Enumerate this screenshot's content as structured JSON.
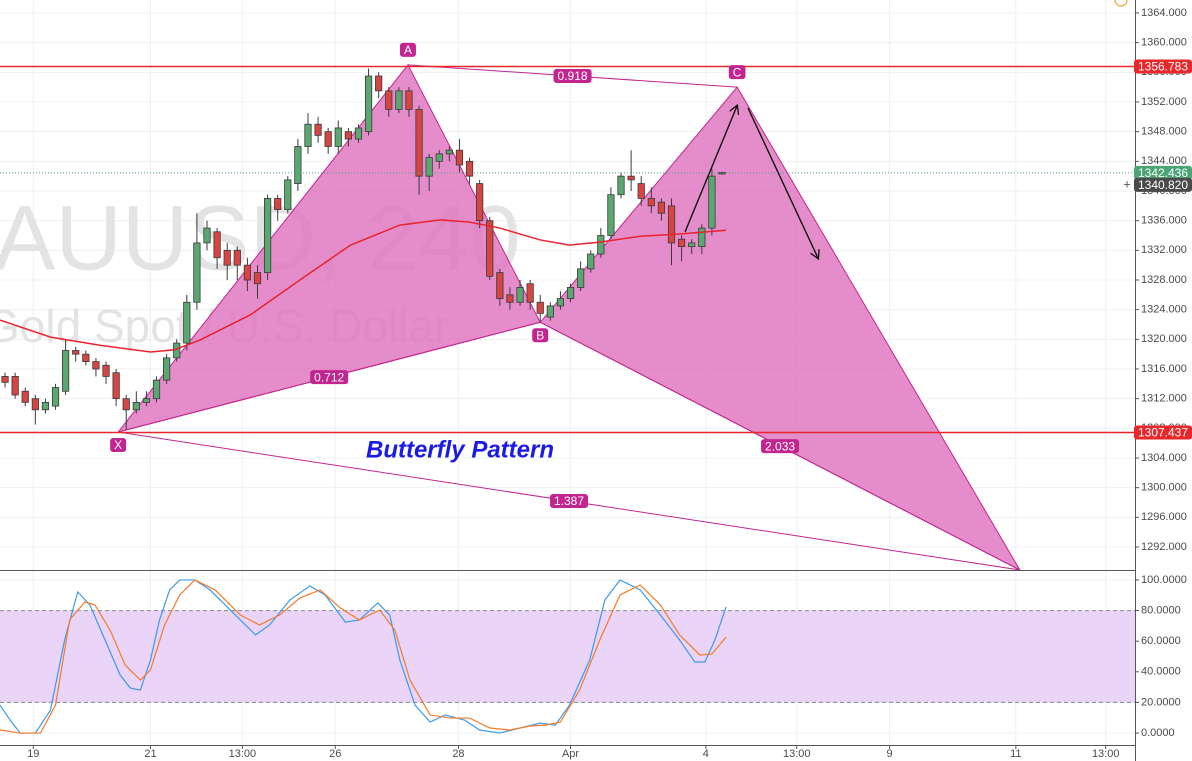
{
  "chart_data": {
    "type": "candlestick",
    "title": "AUUSD, 240",
    "subtitle": "Gold Spot / U.S. Dollar",
    "annotation": "Butterfly Pattern",
    "x": [
      0,
      1,
      2,
      3,
      4,
      5,
      6,
      7,
      8,
      9,
      10,
      11,
      12,
      13,
      14,
      15,
      16,
      17,
      18,
      19,
      20,
      21,
      22,
      23,
      24,
      25,
      26,
      27,
      28,
      29,
      30,
      31,
      32,
      33,
      34,
      35,
      36,
      37,
      38,
      39,
      40,
      41,
      42,
      43,
      44,
      45,
      46,
      47,
      48,
      49,
      50,
      51,
      52,
      53,
      54,
      55,
      56,
      57,
      58,
      59,
      60,
      61,
      62,
      63,
      64,
      65,
      66,
      67,
      68,
      69,
      70,
      71
    ],
    "open": [
      1315,
      1315,
      1313,
      1312,
      1310.5,
      1311,
      1313,
      1318.5,
      1318,
      1317,
      1316.5,
      1315.5,
      1312,
      1310.5,
      1311.5,
      1312,
      1314.5,
      1317.5,
      1319.5,
      1325,
      1333,
      1334.5,
      1332,
      1332,
      1330,
      1329,
      1329,
      1339,
      1337.5,
      1341,
      1346,
      1349,
      1348,
      1346,
      1348,
      1347,
      1348,
      1355.5,
      1353.5,
      1351,
      1353.5,
      1351,
      1342,
      1344,
      1345,
      1345.5,
      1344,
      1341,
      1336,
      1329,
      1326,
      1325,
      1327.5,
      1325,
      1323,
      1324.5,
      1325.5,
      1327,
      1329.5,
      1331.5,
      1334,
      1339.5,
      1342,
      1341,
      1339,
      1338.5,
      1338,
      1333.5,
      1332.5,
      1332.5,
      1335,
      1342.3
    ],
    "high": [
      1315.5,
      1315.5,
      1313.5,
      1312.5,
      1312,
      1314,
      1320,
      1319,
      1318.5,
      1317.5,
      1317,
      1316,
      1312.5,
      1313,
      1313,
      1315,
      1318,
      1320,
      1326,
      1337,
      1336,
      1335,
      1333,
      1332.5,
      1331,
      1330,
      1339.5,
      1339.5,
      1342,
      1347,
      1350.5,
      1350,
      1348.5,
      1349.5,
      1348.5,
      1349,
      1356.5,
      1356,
      1354,
      1354,
      1354,
      1351.5,
      1345,
      1345.5,
      1346,
      1347,
      1344.5,
      1341.5,
      1336.5,
      1329.5,
      1327,
      1328,
      1328,
      1326,
      1325,
      1326.5,
      1327.5,
      1330.5,
      1332,
      1335,
      1340.5,
      1342.5,
      1345.5,
      1342,
      1340.5,
      1339,
      1339,
      1334,
      1333.5,
      1335.5,
      1343,
      1342.6
    ],
    "low": [
      1313.5,
      1312,
      1311,
      1308.5,
      1310,
      1310.5,
      1312.5,
      1317,
      1316.5,
      1315,
      1314,
      1311,
      1307.8,
      1310,
      1311,
      1311.5,
      1314,
      1317,
      1318.5,
      1324,
      1332,
      1329.5,
      1328,
      1328,
      1326.5,
      1325.5,
      1328,
      1336,
      1337,
      1340,
      1345,
      1346.5,
      1345,
      1345,
      1346,
      1346.5,
      1347.5,
      1352.5,
      1350,
      1350.5,
      1350,
      1339.5,
      1340,
      1343,
      1344,
      1342.5,
      1341,
      1335,
      1328,
      1324.5,
      1324,
      1324.5,
      1324,
      1322.3,
      1322.5,
      1324,
      1325,
      1326.5,
      1329,
      1331,
      1333.5,
      1339,
      1340,
      1338,
      1337,
      1336,
      1330,
      1330.5,
      1331.5,
      1331.5,
      1334,
      1342.2
    ],
    "close": [
      1314.2,
      1312.5,
      1311.5,
      1310.5,
      1311.5,
      1313.5,
      1318.5,
      1318,
      1317,
      1316,
      1315,
      1312,
      1310.5,
      1311.5,
      1312,
      1314.5,
      1317.5,
      1319.5,
      1325,
      1333,
      1335,
      1331,
      1330,
      1330,
      1328,
      1327.5,
      1339,
      1337.5,
      1341.5,
      1346,
      1349,
      1347.5,
      1346,
      1348.5,
      1347,
      1348.5,
      1355.5,
      1353.5,
      1351,
      1353.5,
      1351,
      1342,
      1344.5,
      1345,
      1345.5,
      1343.5,
      1342,
      1336,
      1328.5,
      1325.5,
      1325,
      1327,
      1325,
      1323.5,
      1324.5,
      1325.5,
      1327,
      1329.5,
      1331.5,
      1334,
      1339.5,
      1342,
      1341.5,
      1339,
      1338,
      1337,
      1333,
      1332.5,
      1333,
      1335,
      1342,
      1342.5
    ],
    "up_color": "#5aa86f",
    "down_color": "#d64541",
    "xlim": [
      -0.5,
      111.9
    ],
    "xticks": [
      {
        "value": 2.8,
        "label": "19"
      },
      {
        "value": 14.4,
        "label": "21"
      },
      {
        "value": 23.5,
        "label": "13:00"
      },
      {
        "value": 32.7,
        "label": "26"
      },
      {
        "value": 44.9,
        "label": "28"
      },
      {
        "value": 56.0,
        "label": "Apr"
      },
      {
        "value": 69.4,
        "label": "4"
      },
      {
        "value": 78.4,
        "label": "13:00"
      },
      {
        "value": 87.6,
        "label": "9"
      },
      {
        "value": 100.1,
        "label": "11"
      },
      {
        "value": 109.0,
        "label": "13:00"
      }
    ],
    "ylim": [
      1288.9,
      1365.75
    ],
    "yticks": [
      {
        "value": 1364,
        "label": "1364.000"
      },
      {
        "value": 1360,
        "label": "1360.000"
      },
      {
        "value": 1356,
        "label": "1356.000"
      },
      {
        "value": 1352,
        "label": "1352.000"
      },
      {
        "value": 1348,
        "label": "1348.000"
      },
      {
        "value": 1344,
        "label": "1344.000"
      },
      {
        "value": 1340,
        "label": "1340.000"
      },
      {
        "value": 1336,
        "label": "1336.000"
      },
      {
        "value": 1332,
        "label": "1332.000"
      },
      {
        "value": 1328,
        "label": "1328.000"
      },
      {
        "value": 1324,
        "label": "1324.000"
      },
      {
        "value": 1320,
        "label": "1320.000"
      },
      {
        "value": 1316,
        "label": "1316.000"
      },
      {
        "value": 1312,
        "label": "1312.000"
      },
      {
        "value": 1308,
        "label": "1308.000"
      },
      {
        "value": 1304,
        "label": "1304.000"
      },
      {
        "value": 1300,
        "label": "1300.000"
      },
      {
        "value": 1296,
        "label": "1296.000"
      },
      {
        "value": 1292,
        "label": "1292.000"
      }
    ],
    "grid": true,
    "ma": {
      "color": "#e8232f",
      "x": [
        -0.5,
        4.5,
        9.4,
        14.4,
        16.8,
        19.3,
        24.3,
        29.2,
        34.2,
        39.1,
        43.1,
        46.0,
        49.0,
        53.0,
        55.9,
        58.9,
        62.9,
        66.8,
        71.4
      ],
      "values": [
        1322.6,
        1320.3,
        1319.2,
        1318.3,
        1318.6,
        1319.9,
        1323.3,
        1328.0,
        1332.7,
        1335.4,
        1336.1,
        1335.8,
        1335.0,
        1333.4,
        1332.7,
        1333.1,
        1333.9,
        1334.2,
        1334.7
      ]
    },
    "pattern": {
      "color": "#de6fbd",
      "badge_color": "#c2258f",
      "points": [
        {
          "label": "X",
          "x": 11.2,
          "y": 1307.5
        },
        {
          "label": "A",
          "x": 39.9,
          "y": 1357.0
        },
        {
          "label": "B",
          "x": 53.0,
          "y": 1322.3
        },
        {
          "label": "C",
          "x": 72.5,
          "y": 1354.0
        },
        {
          "label": null,
          "x": 100.5,
          "y": 1288.9
        }
      ],
      "ratios": [
        0.918,
        0.712,
        2.033,
        1.387
      ]
    },
    "levels": {
      "color": "#e8272a",
      "values": [
        1356.783,
        1307.437
      ]
    },
    "last_price": 1342.436,
    "last_color": "#4aa574",
    "crosshair": {
      "value": 1340.82,
      "label": "1340.820"
    },
    "stochastic": {
      "ylim": [
        -7.8,
        106.5
      ],
      "yticks": [
        {
          "value": 100,
          "label": "100.0000"
        },
        {
          "value": 80,
          "label": "80.0000"
        },
        {
          "value": 60,
          "label": "60.0000"
        },
        {
          "value": 40,
          "label": "40.0000"
        },
        {
          "value": 20,
          "label": "20.0000"
        },
        {
          "value": 0,
          "label": "0.0000"
        }
      ],
      "bands": [
        20,
        80
      ],
      "band_color": "#e6ccf7",
      "series": [
        {
          "color": "#3d9be9",
          "x": [
            -0.5,
            0.5,
            1.5,
            3.0,
            4.5,
            5.9,
            7.2,
            8.4,
            9.9,
            11.4,
            12.4,
            13.4,
            14.4,
            15.3,
            16.3,
            17.3,
            18.8,
            20.3,
            22.3,
            24.8,
            26.2,
            28.2,
            30.2,
            31.7,
            33.7,
            35.1,
            36.9,
            38.1,
            39.1,
            40.6,
            42.1,
            43.6,
            45.5,
            47.0,
            49.0,
            51.0,
            53.0,
            54.5,
            55.9,
            57.9,
            59.4,
            60.9,
            62.9,
            64.9,
            66.8,
            68.3,
            69.3,
            70.3,
            71.4
          ],
          "values": [
            18.3,
            8.5,
            0,
            0,
            15.0,
            60.8,
            92.2,
            83.7,
            60.8,
            37.9,
            29.4,
            28.1,
            47.7,
            73.9,
            93.5,
            100,
            100,
            93.5,
            80.4,
            64.1,
            70.6,
            86.9,
            96.1,
            90.2,
            72.5,
            73.9,
            85.0,
            77.1,
            47.7,
            18.3,
            7.2,
            11.8,
            8.5,
            2.0,
            0,
            3.3,
            6.5,
            5.2,
            18.3,
            47.7,
            86.9,
            100,
            93.5,
            77.1,
            60.8,
            46.4,
            46.4,
            60.8,
            82.4
          ]
        },
        {
          "color": "#f57c2a",
          "x": [
            -0.5,
            1.5,
            3.5,
            5.0,
            6.4,
            7.9,
            8.9,
            10.4,
            11.9,
            13.4,
            14.4,
            15.8,
            17.3,
            18.8,
            20.8,
            23.3,
            25.2,
            27.2,
            29.2,
            31.2,
            33.2,
            35.1,
            37.1,
            38.6,
            40.1,
            42.1,
            44.1,
            46.0,
            48.0,
            50.0,
            52.0,
            53.5,
            55.0,
            56.9,
            58.9,
            60.9,
            62.9,
            64.9,
            66.8,
            68.8,
            70.0,
            71.4
          ],
          "values": [
            2.0,
            0,
            0,
            18.3,
            73.9,
            85.6,
            83.7,
            67.3,
            44.4,
            34.6,
            41.2,
            70.6,
            90.2,
            100,
            93.5,
            77.1,
            70.6,
            77.1,
            88.2,
            93.5,
            81.7,
            73.9,
            80.4,
            67.3,
            34.6,
            11.8,
            9.8,
            9.8,
            3.3,
            2.0,
            4.6,
            5.2,
            7.2,
            28.1,
            60.8,
            90.2,
            96.7,
            83.7,
            64.1,
            51.0,
            51.6,
            62.7
          ]
        }
      ]
    }
  }
}
